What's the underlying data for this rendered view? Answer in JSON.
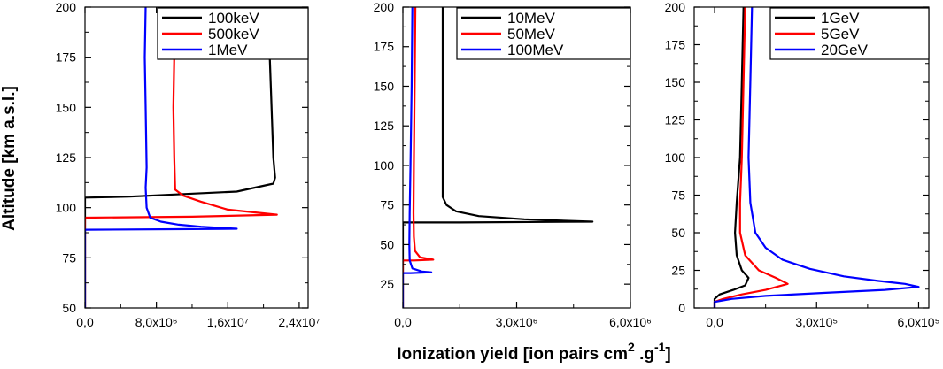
{
  "figure": {
    "ylabel": "Altitude [km a.s.l.]",
    "xlabel": "Ionization yield [ion pairs cm",
    "xlabel_sup1": "2",
    "xlabel_mid": " .g",
    "xlabel_sup2": "-1",
    "xlabel_end": "]"
  },
  "chart_data": [
    {
      "type": "line",
      "xlim": [
        0,
        25000000
      ],
      "ylim": [
        50,
        200
      ],
      "xticks": [
        0,
        8000000,
        16000000,
        24000000
      ],
      "xtick_labels": [
        "0,0",
        "8,0x10⁶",
        "1,6x10⁷",
        "2,4x10⁷"
      ],
      "yticks": [
        50,
        75,
        100,
        125,
        150,
        175,
        200
      ],
      "ytick_labels": [
        "50",
        "75",
        "100",
        "125",
        "150",
        "175",
        "200"
      ],
      "legend_position": "top-right",
      "series": [
        {
          "name": "100keV",
          "color": "#000000",
          "points": [
            [
              20500000,
              200
            ],
            [
              20700000,
              175
            ],
            [
              20900000,
              150
            ],
            [
              21100000,
              125
            ],
            [
              21300000,
              115
            ],
            [
              21100000,
              112
            ],
            [
              17000000,
              108
            ],
            [
              5000000,
              105.5
            ],
            [
              0,
              105
            ],
            [
              0,
              50
            ]
          ]
        },
        {
          "name": "500keV",
          "color": "#ff0000",
          "points": [
            [
              10200000,
              200
            ],
            [
              10000000,
              175
            ],
            [
              9900000,
              150
            ],
            [
              10000000,
              125
            ],
            [
              10100000,
              109
            ],
            [
              11000000,
              106
            ],
            [
              13000000,
              103
            ],
            [
              16000000,
              99
            ],
            [
              21500000,
              96.5
            ],
            [
              12000000,
              95.5
            ],
            [
              0,
              95
            ],
            [
              0,
              50
            ]
          ]
        },
        {
          "name": "1MeV",
          "color": "#0000ff",
          "points": [
            [
              6800000,
              200
            ],
            [
              6700000,
              175
            ],
            [
              6800000,
              150
            ],
            [
              6900000,
              120
            ],
            [
              6800000,
              110
            ],
            [
              6900000,
              100
            ],
            [
              7300000,
              95
            ],
            [
              8500000,
              93
            ],
            [
              10500000,
              91.5
            ],
            [
              13000000,
              90.5
            ],
            [
              17000000,
              89.5
            ],
            [
              12000000,
              89.3
            ],
            [
              0,
              89
            ],
            [
              0,
              50
            ]
          ]
        }
      ]
    },
    {
      "type": "line",
      "xlim": [
        0,
        6000000
      ],
      "ylim": [
        10,
        200
      ],
      "xticks": [
        0,
        3000000,
        6000000
      ],
      "xtick_labels": [
        "0,0",
        "3,0x10⁶",
        "6,0x10⁶"
      ],
      "yticks": [
        25,
        50,
        75,
        100,
        125,
        150,
        175,
        200
      ],
      "ytick_labels": [
        "25",
        "50",
        "75",
        "100",
        "125",
        "150",
        "175",
        "200"
      ],
      "legend_position": "top-right",
      "series": [
        {
          "name": "10MeV",
          "color": "#000000",
          "points": [
            [
              1050000,
              200
            ],
            [
              1050000,
              150
            ],
            [
              1050000,
              100
            ],
            [
              1050000,
              80
            ],
            [
              1150000,
              75
            ],
            [
              1400000,
              71
            ],
            [
              2000000,
              68
            ],
            [
              3200000,
              66
            ],
            [
              5000000,
              64.5
            ],
            [
              1500000,
              64
            ],
            [
              0,
              64
            ],
            [
              0,
              10
            ]
          ]
        },
        {
          "name": "50MeV",
          "color": "#ff0000",
          "points": [
            [
              330000,
              200
            ],
            [
              310000,
              150
            ],
            [
              290000,
              100
            ],
            [
              280000,
              70
            ],
            [
              290000,
              55
            ],
            [
              320000,
              46
            ],
            [
              450000,
              42
            ],
            [
              800000,
              40.5
            ],
            [
              300000,
              40
            ],
            [
              0,
              40
            ],
            [
              0,
              10
            ]
          ]
        },
        {
          "name": "100MeV",
          "color": "#0000ff",
          "points": [
            [
              250000,
              200
            ],
            [
              230000,
              150
            ],
            [
              200000,
              100
            ],
            [
              180000,
              70
            ],
            [
              170000,
              50
            ],
            [
              180000,
              40
            ],
            [
              250000,
              35
            ],
            [
              500000,
              33
            ],
            [
              750000,
              32.5
            ],
            [
              200000,
              32
            ],
            [
              0,
              32
            ],
            [
              0,
              10
            ]
          ]
        }
      ]
    },
    {
      "type": "line",
      "xlim": [
        -60000,
        630000
      ],
      "ylim": [
        0,
        200
      ],
      "xticks": [
        0,
        300000,
        600000
      ],
      "xtick_labels": [
        "0,0",
        "3,0x10⁵",
        "6,0x10⁵"
      ],
      "yticks": [
        0,
        25,
        50,
        75,
        100,
        125,
        150,
        175,
        200
      ],
      "ytick_labels": [
        "0",
        "25",
        "50",
        "75",
        "100",
        "125",
        "150",
        "175",
        "200"
      ],
      "legend_position": "top-right",
      "series": [
        {
          "name": "1GeV",
          "color": "#000000",
          "points": [
            [
              85000,
              200
            ],
            [
              80000,
              150
            ],
            [
              75000,
              100
            ],
            [
              65000,
              70
            ],
            [
              60000,
              50
            ],
            [
              65000,
              35
            ],
            [
              80000,
              25
            ],
            [
              100000,
              20
            ],
            [
              90000,
              15
            ],
            [
              55000,
              12
            ],
            [
              15000,
              9
            ],
            [
              0,
              6
            ],
            [
              0,
              0
            ]
          ]
        },
        {
          "name": "5GeV",
          "color": "#ff0000",
          "points": [
            [
              90000,
              200
            ],
            [
              85000,
              150
            ],
            [
              80000,
              100
            ],
            [
              75000,
              70
            ],
            [
              75000,
              50
            ],
            [
              90000,
              35
            ],
            [
              130000,
              25
            ],
            [
              180000,
              20
            ],
            [
              215000,
              16
            ],
            [
              150000,
              12
            ],
            [
              80000,
              9
            ],
            [
              25000,
              6
            ],
            [
              0,
              4
            ],
            [
              0,
              0
            ]
          ]
        },
        {
          "name": "20GeV",
          "color": "#0000ff",
          "points": [
            [
              110000,
              200
            ],
            [
              105000,
              150
            ],
            [
              100000,
              100
            ],
            [
              105000,
              70
            ],
            [
              120000,
              50
            ],
            [
              150000,
              40
            ],
            [
              200000,
              32
            ],
            [
              280000,
              26
            ],
            [
              380000,
              21
            ],
            [
              480000,
              18
            ],
            [
              560000,
              16
            ],
            [
              600000,
              14
            ],
            [
              500000,
              12
            ],
            [
              320000,
              10
            ],
            [
              150000,
              8
            ],
            [
              50000,
              6
            ],
            [
              0,
              4
            ],
            [
              0,
              0
            ]
          ]
        }
      ]
    }
  ]
}
